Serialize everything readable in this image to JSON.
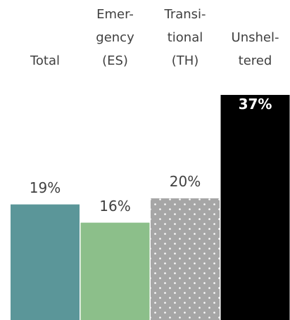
{
  "chart_data": {
    "type": "bar",
    "categories": [
      "Total",
      "Emer-\ngency\n(ES)",
      "Transi-\ntional\n(TH)",
      "Unshel-\ntered"
    ],
    "values": [
      19,
      16,
      20,
      37
    ],
    "value_labels": [
      "19%",
      "16%",
      "20%",
      "37%"
    ],
    "colors": [
      "#5b9699",
      "#8cbf8a",
      "#a6a6a6",
      "#000000"
    ],
    "patterns": [
      "solid",
      "solid",
      "dotted",
      "solid"
    ],
    "ylim": [
      0,
      40
    ],
    "grid": false,
    "legend": "none"
  }
}
